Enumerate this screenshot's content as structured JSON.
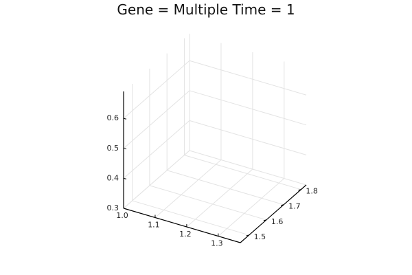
{
  "chart_data": {
    "type": "scatter",
    "title": "Gene = Multiple Time = 1",
    "xlabel": "",
    "ylabel": "",
    "zlabel": "",
    "x_ticks": [
      "1.0",
      "1.1",
      "1.2",
      "1.3"
    ],
    "y_ticks": [
      "1.5",
      "1.6",
      "1.7",
      "1.8"
    ],
    "z_ticks": [
      "0.3",
      "0.4",
      "0.5",
      "0.6"
    ],
    "xlim": [
      1.0,
      1.37
    ],
    "ylim": [
      1.45,
      1.83
    ],
    "zlim": [
      0.3,
      0.69
    ],
    "grid": true,
    "projection": "3d",
    "series": []
  }
}
